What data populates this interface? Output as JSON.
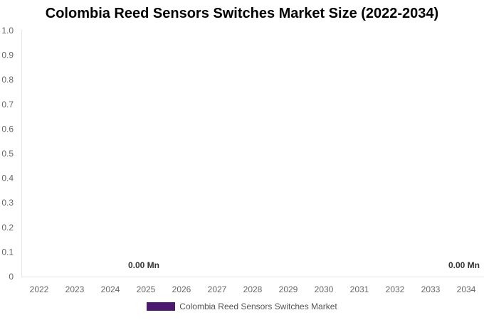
{
  "chart_data": {
    "type": "bar",
    "title": "Colombia Reed Sensors Switches Market Size (2022-2034)",
    "categories": [
      "2022",
      "2023",
      "2024",
      "2025",
      "2026",
      "2027",
      "2028",
      "2029",
      "2030",
      "2031",
      "2032",
      "2033",
      "2034"
    ],
    "series": [
      {
        "name": "Colombia Reed Sensors Switches Market",
        "values": [
          0,
          0,
          0,
          0,
          0,
          0,
          0,
          0,
          0,
          0,
          0,
          0,
          0
        ],
        "color": "#4b1a6e"
      }
    ],
    "data_labels": [
      {
        "category": "2025",
        "text": "0.00 Mn"
      },
      {
        "category": "2034",
        "text": "0.00 Mn"
      }
    ],
    "y_ticks": [
      "0",
      "0.1",
      "0.2",
      "0.3",
      "0.4",
      "0.5",
      "0.6",
      "0.7",
      "0.8",
      "0.9",
      "1.0"
    ],
    "ylim": [
      0,
      1.0
    ],
    "grid": false,
    "legend_position": "bottom"
  }
}
